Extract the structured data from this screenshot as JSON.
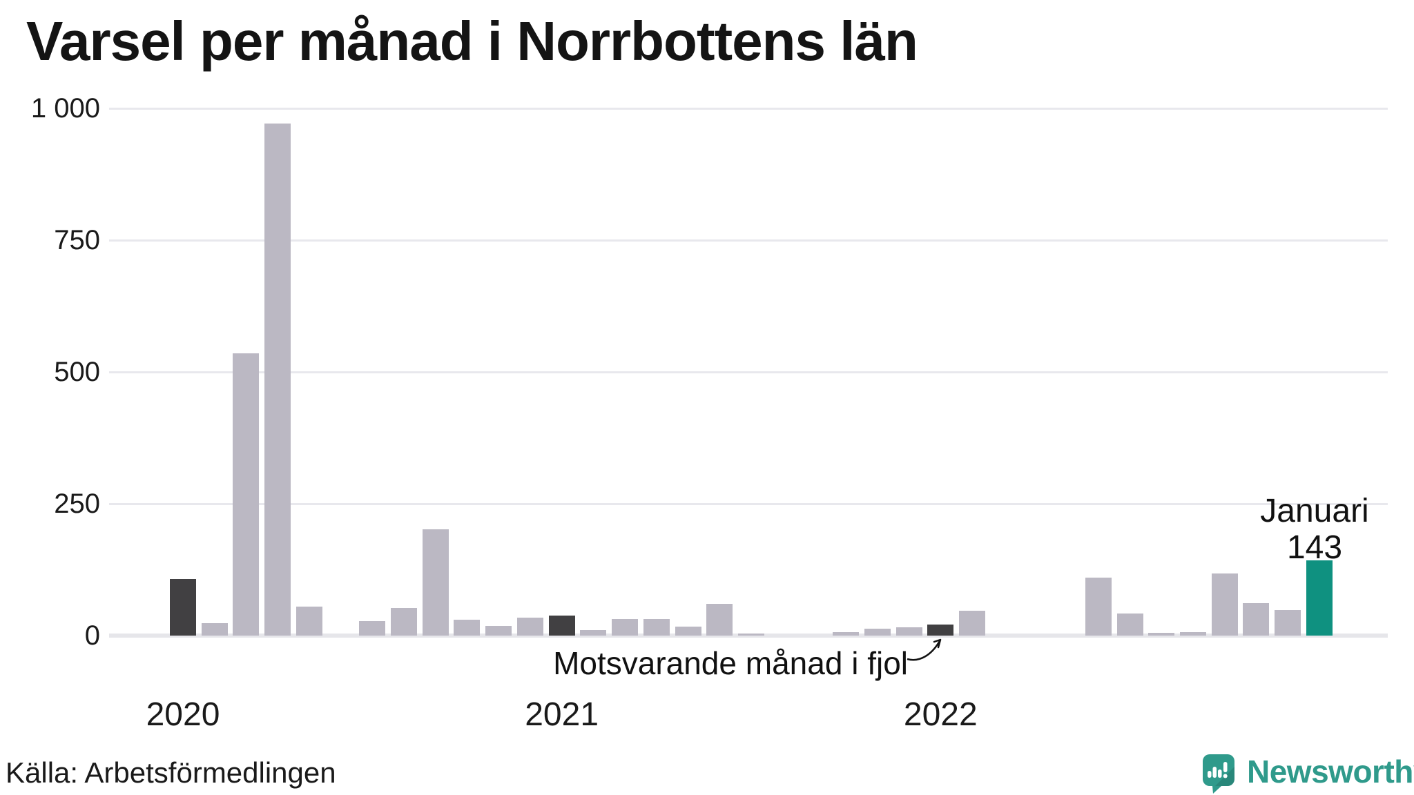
{
  "title": "Varsel per månad i Norrbottens län",
  "source": "Källa: Arbetsförmedlingen",
  "brand": {
    "name": "Newsworthy",
    "color": "#2f9a8b"
  },
  "annotation": {
    "text": "Motsvarande månad i fjol"
  },
  "latest_label": {
    "line1": "Januari",
    "line2": "143"
  },
  "colors": {
    "bar_default": "#bbb8c3",
    "bar_dark": "#414042",
    "bar_accent": "#0f9180",
    "gridline": "#e8e8ed",
    "text": "#1a1a1a"
  },
  "chart_data": {
    "type": "bar",
    "title": "Varsel per månad i Norrbottens län",
    "xlabel": "",
    "ylabel": "",
    "ylim": [
      0,
      1000
    ],
    "grid": true,
    "y_ticks": [
      {
        "label": "1 000",
        "value": 1000
      },
      {
        "label": "750",
        "value": 750
      },
      {
        "label": "500",
        "value": 500
      },
      {
        "label": "250",
        "value": 250
      },
      {
        "label": "0",
        "value": 0
      }
    ],
    "x_year_labels": [
      "2020",
      "2021",
      "2022"
    ],
    "months": [
      "2020-01",
      "2020-02",
      "2020-03",
      "2020-04",
      "2020-05",
      "2020-06",
      "2020-07",
      "2020-08",
      "2020-09",
      "2020-10",
      "2020-11",
      "2020-12",
      "2021-01",
      "2021-02",
      "2021-03",
      "2021-04",
      "2021-05",
      "2021-06",
      "2021-07",
      "2021-08",
      "2021-09",
      "2021-10",
      "2021-11",
      "2021-12",
      "2022-01",
      "2022-02",
      "2022-03",
      "2022-04",
      "2022-05",
      "2022-06",
      "2022-07",
      "2022-08",
      "2022-09",
      "2022-10",
      "2022-11",
      "2022-12",
      "2023-01"
    ],
    "values": [
      107,
      24,
      535,
      971,
      55,
      0,
      27,
      52,
      202,
      30,
      18,
      34,
      38,
      10,
      31,
      31,
      17,
      60,
      4,
      0,
      0,
      6,
      13,
      16,
      21,
      47,
      0,
      0,
      0,
      110,
      42,
      5,
      7,
      118,
      61,
      48,
      143
    ],
    "highlight_dark_months": [
      "2020-01",
      "2021-01",
      "2022-01"
    ],
    "highlight_accent_month": "2023-01",
    "accent_value_label": "143",
    "accent_month_label": "Januari",
    "annotation_target_month": "2022-01"
  }
}
